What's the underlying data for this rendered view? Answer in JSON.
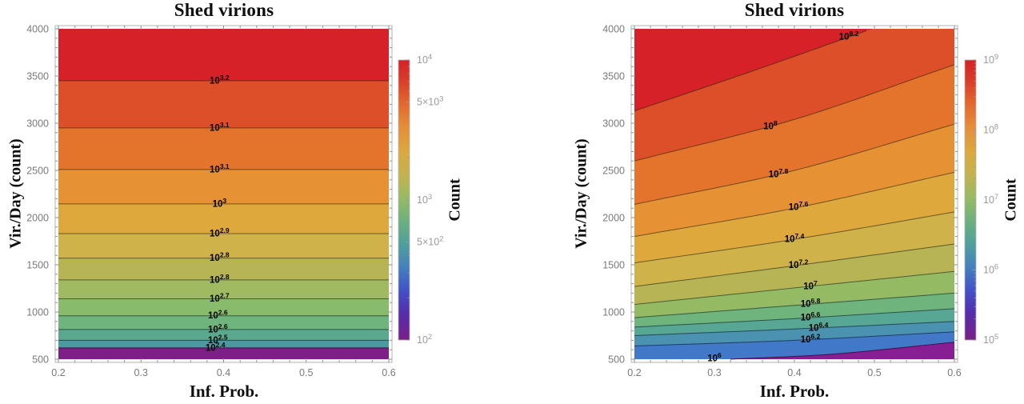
{
  "figure": {
    "background": "#ffffff"
  },
  "chart_data": [
    {
      "type": "contour",
      "title": "Shed virions",
      "xlabel": "Inf. Prob.",
      "ylabel": "Vir./Day (count)",
      "bar_label": "Count",
      "xlim": [
        0.2,
        0.6
      ],
      "ylim": [
        500,
        4000
      ],
      "x_ticks": [
        0.2,
        0.3,
        0.4,
        0.5,
        0.6
      ],
      "y_ticks": [
        500,
        1000,
        1500,
        2000,
        2500,
        3000,
        3500,
        4000
      ],
      "x_minor_step": 0.02,
      "y_minor_step": 100,
      "bands": [
        "#d62128",
        "#dc4f28",
        "#e4732c",
        "#e69134",
        "#dfa83c",
        "#cfb249",
        "#b7b455",
        "#9fba60",
        "#88bb6c",
        "#6fb37d",
        "#5aa98e",
        "#4b9aa2",
        "#7d1f86"
      ],
      "contour_base": "10",
      "contours": [
        {
          "exp": "3.2",
          "pts": [
            [
              0.2,
              3450
            ],
            [
              0.6,
              3450
            ]
          ],
          "lx": 0.395
        },
        {
          "exp": "3.1",
          "pts": [
            [
              0.2,
              2950
            ],
            [
              0.6,
              2950
            ]
          ],
          "lx": 0.395
        },
        {
          "exp": "3.1",
          "pts": [
            [
              0.2,
              2510
            ],
            [
              0.6,
              2510
            ]
          ],
          "lx": 0.395
        },
        {
          "exp": "3",
          "pts": [
            [
              0.2,
              2145
            ],
            [
              0.6,
              2145
            ]
          ],
          "lx": 0.395
        },
        {
          "exp": "2.9",
          "pts": [
            [
              0.2,
              1830
            ],
            [
              0.6,
              1830
            ]
          ],
          "lx": 0.395
        },
        {
          "exp": "2.8",
          "pts": [
            [
              0.2,
              1570
            ],
            [
              0.6,
              1570
            ]
          ],
          "lx": 0.395
        },
        {
          "exp": "2.8",
          "pts": [
            [
              0.2,
              1340
            ],
            [
              0.6,
              1340
            ]
          ],
          "lx": 0.395
        },
        {
          "exp": "2.7",
          "pts": [
            [
              0.2,
              1140
            ],
            [
              0.6,
              1140
            ]
          ],
          "lx": 0.395
        },
        {
          "exp": "2.6",
          "pts": [
            [
              0.2,
              960
            ],
            [
              0.6,
              960
            ]
          ],
          "lx": 0.393
        },
        {
          "exp": "2.6",
          "pts": [
            [
              0.2,
              815
            ],
            [
              0.6,
              815
            ]
          ],
          "lx": 0.393
        },
        {
          "exp": "2.5",
          "pts": [
            [
              0.2,
              700
            ],
            [
              0.6,
              700
            ]
          ],
          "lx": 0.393
        },
        {
          "exp": "2.4",
          "pts": [
            [
              0.2,
              620
            ],
            [
              0.6,
              620
            ]
          ],
          "lx": 0.39
        }
      ],
      "colorbar": {
        "log_range": [
          2,
          4
        ],
        "ticks": [
          {
            "base": "10",
            "exp": "4",
            "log": 4.0
          },
          {
            "base": "5×10",
            "exp": "3",
            "log": 3.69897
          },
          {
            "base": "10",
            "exp": "3",
            "log": 3.0
          },
          {
            "base": "5×10",
            "exp": "2",
            "log": 2.69897
          },
          {
            "base": "10",
            "exp": "2",
            "log": 2.0
          }
        ],
        "gradient": [
          [
            "0%",
            "#d42127"
          ],
          [
            "7%",
            "#d93b28"
          ],
          [
            "15%",
            "#e2652c"
          ],
          [
            "24%",
            "#e68e38"
          ],
          [
            "33%",
            "#dba93f"
          ],
          [
            "42%",
            "#bfb351"
          ],
          [
            "50%",
            "#93bb65"
          ],
          [
            "58%",
            "#69b07f"
          ],
          [
            "66%",
            "#4f9f9d"
          ],
          [
            "74%",
            "#4481bd"
          ],
          [
            "82%",
            "#4153c8"
          ],
          [
            "90%",
            "#532fae"
          ],
          [
            "100%",
            "#7a1f87"
          ]
        ]
      }
    },
    {
      "type": "contour",
      "title": "Shed virions",
      "xlabel": "Inf. Prob.",
      "ylabel": "Vir./Day (count)",
      "bar_label": "Count",
      "xlim": [
        0.2,
        0.6
      ],
      "ylim": [
        500,
        4000
      ],
      "x_ticks": [
        0.2,
        0.3,
        0.4,
        0.5,
        0.6
      ],
      "y_ticks": [
        500,
        1000,
        1500,
        2000,
        2500,
        3000,
        3500,
        4000
      ],
      "x_minor_step": 0.02,
      "y_minor_step": 100,
      "bands": [
        "#d62128",
        "#dc4f28",
        "#e4732c",
        "#e69134",
        "#dfa83c",
        "#cfb249",
        "#b7b455",
        "#94bb64",
        "#6fb37d",
        "#58a794",
        "#4b91b0",
        "#4179c8",
        "#871e94"
      ],
      "contour_base": "10",
      "contours": [
        {
          "exp": "8.2",
          "pts": [
            [
              0.2,
              3130
            ],
            [
              0.35,
              3560
            ],
            [
              0.52,
              4070
            ]
          ],
          "lx": 0.468
        },
        {
          "exp": "8",
          "pts": [
            [
              0.2,
              2600
            ],
            [
              0.4,
              3040
            ],
            [
              0.6,
              3620
            ]
          ],
          "lx": 0.37
        },
        {
          "exp": "7.8",
          "pts": [
            [
              0.2,
              2140
            ],
            [
              0.4,
              2500
            ],
            [
              0.6,
              2990
            ]
          ],
          "lx": 0.38
        },
        {
          "exp": "7.6",
          "pts": [
            [
              0.2,
              1800
            ],
            [
              0.4,
              2100
            ],
            [
              0.6,
              2480
            ]
          ],
          "lx": 0.405
        },
        {
          "exp": "7.4",
          "pts": [
            [
              0.2,
              1520
            ],
            [
              0.4,
              1770
            ],
            [
              0.6,
              2060
            ]
          ],
          "lx": 0.4
        },
        {
          "exp": "7.2",
          "pts": [
            [
              0.2,
              1270
            ],
            [
              0.4,
              1490
            ],
            [
              0.6,
              1720
            ]
          ],
          "lx": 0.405
        },
        {
          "exp": "7",
          "pts": [
            [
              0.2,
              1080
            ],
            [
              0.4,
              1255
            ],
            [
              0.6,
              1430
            ]
          ],
          "lx": 0.42
        },
        {
          "exp": "6.8",
          "pts": [
            [
              0.2,
              940
            ],
            [
              0.4,
              1070
            ],
            [
              0.6,
              1200
            ]
          ],
          "lx": 0.42
        },
        {
          "exp": "6.6",
          "pts": [
            [
              0.2,
              840
            ],
            [
              0.4,
              930
            ],
            [
              0.6,
              1035
            ]
          ],
          "lx": 0.42
        },
        {
          "exp": "6.4",
          "pts": [
            [
              0.2,
              750
            ],
            [
              0.4,
              820
            ],
            [
              0.6,
              900
            ]
          ],
          "lx": 0.43
        },
        {
          "exp": "6.2",
          "pts": [
            [
              0.2,
              640
            ],
            [
              0.4,
              700
            ],
            [
              0.6,
              790
            ]
          ],
          "lx": 0.42
        },
        {
          "exp": "6",
          "pts": [
            [
              0.2,
              445
            ],
            [
              0.32,
              500
            ],
            [
              0.45,
              555
            ],
            [
              0.6,
              680
            ]
          ],
          "lx": 0.3
        }
      ],
      "colorbar": {
        "log_range": [
          5,
          9
        ],
        "ticks": [
          {
            "base": "10",
            "exp": "9",
            "log": 9.0
          },
          {
            "base": "10",
            "exp": "8",
            "log": 8.0
          },
          {
            "base": "10",
            "exp": "7",
            "log": 7.0
          },
          {
            "base": "10",
            "exp": "6",
            "log": 6.0
          },
          {
            "base": "10",
            "exp": "5",
            "log": 5.0
          }
        ],
        "gradient": [
          [
            "0%",
            "#d42127"
          ],
          [
            "7%",
            "#d93b28"
          ],
          [
            "15%",
            "#e2652c"
          ],
          [
            "24%",
            "#e68e38"
          ],
          [
            "33%",
            "#dba93f"
          ],
          [
            "42%",
            "#bfb351"
          ],
          [
            "50%",
            "#93bb65"
          ],
          [
            "58%",
            "#69b07f"
          ],
          [
            "66%",
            "#4f9f9d"
          ],
          [
            "74%",
            "#4481bd"
          ],
          [
            "82%",
            "#4153c8"
          ],
          [
            "90%",
            "#532fae"
          ],
          [
            "100%",
            "#7a1f87"
          ]
        ]
      }
    }
  ]
}
